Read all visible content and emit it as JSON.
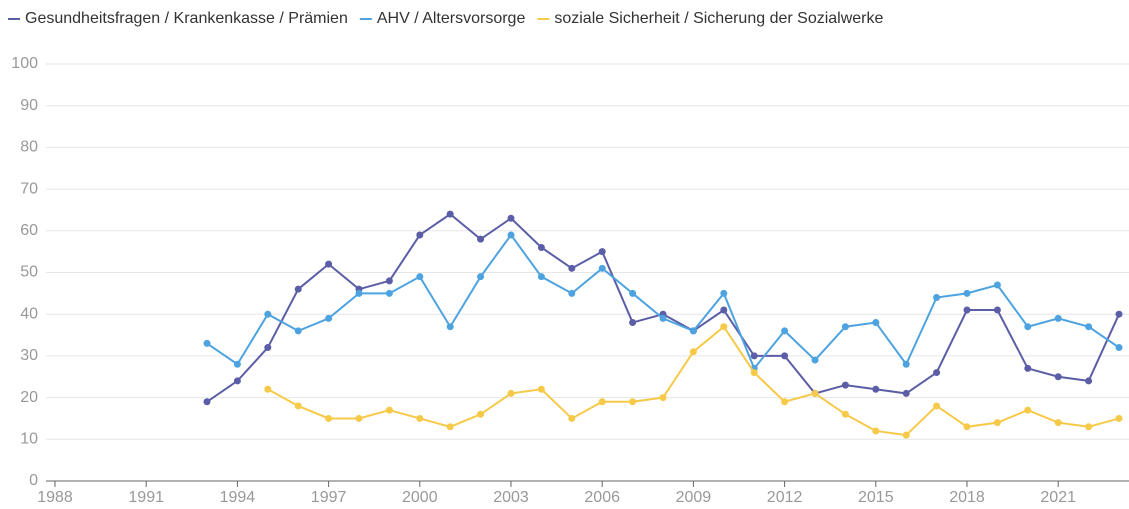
{
  "chart_data": {
    "type": "line",
    "x": [
      1993,
      1994,
      1995,
      1996,
      1997,
      1998,
      1999,
      2000,
      2001,
      2002,
      2003,
      2004,
      2005,
      2006,
      2007,
      2008,
      2009,
      2010,
      2011,
      2012,
      2013,
      2014,
      2015,
      2016,
      2017,
      2018,
      2019,
      2020,
      2021,
      2022,
      2023
    ],
    "series": [
      {
        "name": "Gesundheitsfragen / Krankenkasse / Prämien",
        "color": "#5b5ea6",
        "values": [
          19,
          24,
          32,
          46,
          52,
          46,
          48,
          59,
          64,
          58,
          63,
          56,
          51,
          55,
          38,
          40,
          36,
          41,
          30,
          30,
          21,
          23,
          22,
          21,
          26,
          41,
          41,
          27,
          25,
          24,
          40
        ]
      },
      {
        "name": "AHV / Altersvorsorge",
        "color": "#4da3e0",
        "values": [
          33,
          28,
          40,
          36,
          39,
          45,
          45,
          49,
          37,
          49,
          59,
          49,
          45,
          51,
          45,
          39,
          36,
          45,
          27,
          36,
          29,
          37,
          38,
          28,
          44,
          45,
          47,
          37,
          39,
          37,
          32
        ]
      },
      {
        "name": "soziale Sicherheit / Sicherung der Sozialwerke",
        "color": "#f7c948",
        "values": [
          null,
          null,
          22,
          18,
          15,
          15,
          17,
          15,
          13,
          16,
          21,
          22,
          15,
          19,
          19,
          20,
          31,
          37,
          26,
          19,
          21,
          16,
          12,
          11,
          18,
          13,
          14,
          17,
          14,
          13,
          15
        ]
      }
    ],
    "xlim": [
      1988,
      2023
    ],
    "xticks": [
      1988,
      1991,
      1994,
      1997,
      2000,
      2003,
      2006,
      2009,
      2012,
      2015,
      2018,
      2021
    ],
    "ylim": [
      0,
      100
    ],
    "yticks": [
      0,
      10,
      20,
      30,
      40,
      50,
      60,
      70,
      80,
      90,
      100
    ],
    "grid": true
  }
}
